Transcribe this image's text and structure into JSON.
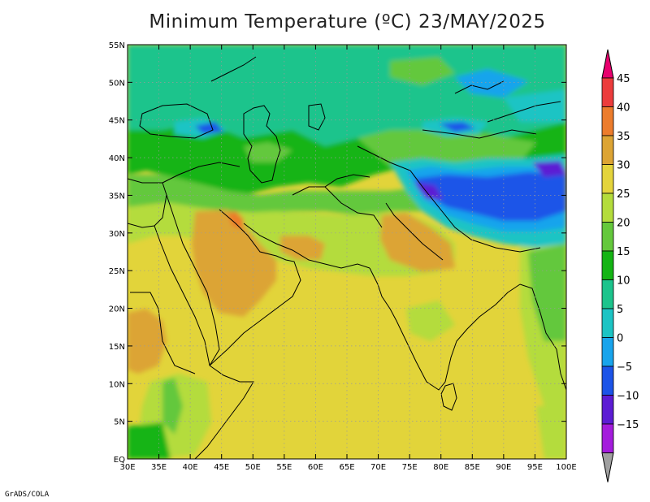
{
  "title": "Minimum Temperature (ºC) 23/MAY/2025",
  "credit": "GrADS/COLA",
  "map": {
    "lon_range": [
      30,
      100
    ],
    "lat_range": [
      0,
      55
    ],
    "lon_ticks": [
      "30E",
      "35E",
      "40E",
      "45E",
      "50E",
      "55E",
      "60E",
      "65E",
      "70E",
      "75E",
      "80E",
      "85E",
      "90E",
      "95E",
      "100E"
    ],
    "lat_ticks": [
      "EQ",
      "5N",
      "10N",
      "15N",
      "20N",
      "25N",
      "30N",
      "35N",
      "40N",
      "45N",
      "50N",
      "55N"
    ],
    "grid": "dotted"
  },
  "colorbar": {
    "labels": [
      "45",
      "40",
      "35",
      "30",
      "25",
      "20",
      "15",
      "10",
      "5",
      "0",
      "−5",
      "−10",
      "−15"
    ],
    "colors": [
      "#e8006e",
      "#ec3c3c",
      "#ec7c2c",
      "#dca434",
      "#e4d43c",
      "#b4dc3c",
      "#64c83c",
      "#14b414",
      "#1cc48c",
      "#1cc4c4",
      "#18a4ec",
      "#1c54e8",
      "#5c1cd4",
      "#a41cdc"
    ],
    "under_color": "#a0a0a0"
  }
}
